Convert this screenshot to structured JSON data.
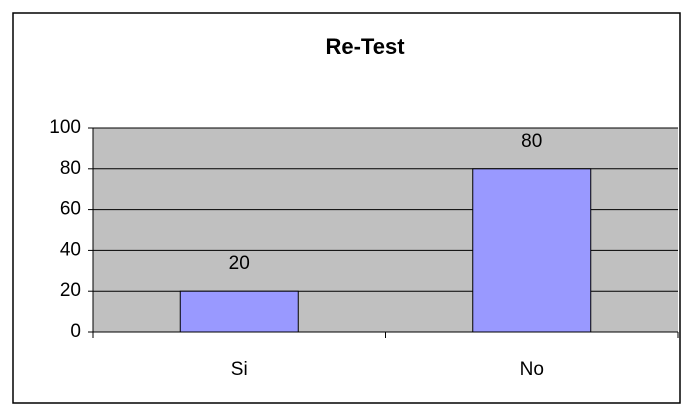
{
  "chart_data": {
    "type": "bar",
    "title": "Re-Test",
    "categories": [
      "Si",
      "No"
    ],
    "values": [
      20,
      80
    ],
    "color": "#9999ff",
    "ylim": [
      0,
      100
    ],
    "yticks": [
      0,
      20,
      40,
      60,
      80,
      100
    ],
    "grid": true
  }
}
